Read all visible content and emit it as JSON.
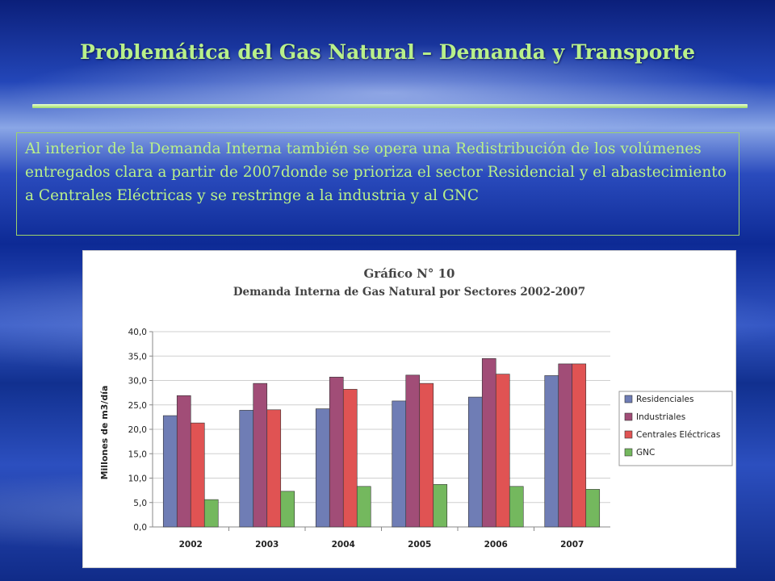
{
  "slide": {
    "title": "Problemática del Gas Natural – Demanda y Transporte",
    "paragraph": "Al interior de la Demanda Interna también se opera una Redistribución de los volúmenes entregados clara a partir de 2007donde se prioriza el sector Residencial y el abastecimiento a Centrales Eléctricas y se restringe a la industria y al GNC"
  },
  "colors": {
    "title_text": "#b9f08a",
    "rule": "#9fdc6a"
  },
  "chart_data": {
    "type": "bar",
    "title": "Gráfico N° 10",
    "subtitle": "Demanda Interna de Gas Natural por Sectores 2002-2007",
    "xlabel": "",
    "ylabel": "Millones de m3/día",
    "categories": [
      "2002",
      "2003",
      "2004",
      "2005",
      "2006",
      "2007"
    ],
    "ylim": [
      0,
      40
    ],
    "yticks": [
      "0,0",
      "5,0",
      "10,0",
      "15,0",
      "20,0",
      "25,0",
      "30,0",
      "35,0",
      "40,0"
    ],
    "grid": true,
    "legend_position": "right",
    "series": [
      {
        "name": "Residenciales",
        "color": "#6f7db5",
        "values": [
          22.8,
          23.9,
          24.2,
          25.8,
          26.6,
          31.0
        ]
      },
      {
        "name": "Industriales",
        "color": "#a14d77",
        "values": [
          26.9,
          29.4,
          30.7,
          31.1,
          34.5,
          33.4
        ]
      },
      {
        "name": "Centrales Eléctricas",
        "color": "#e05353",
        "values": [
          21.3,
          24.0,
          28.2,
          29.4,
          31.3,
          33.4
        ]
      },
      {
        "name": "GNC",
        "color": "#74b85e",
        "values": [
          5.6,
          7.3,
          8.3,
          8.7,
          8.3,
          7.7
        ]
      }
    ]
  }
}
